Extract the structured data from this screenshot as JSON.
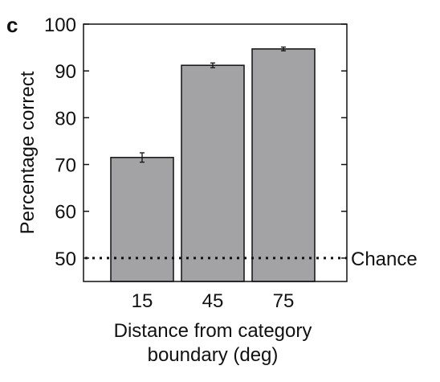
{
  "panel_label": "c",
  "chart_data": {
    "type": "bar",
    "categories": [
      "15",
      "45",
      "75"
    ],
    "values": [
      71.5,
      91.2,
      94.7
    ],
    "errors": [
      1.0,
      0.5,
      0.4
    ],
    "xlabel_lines": [
      "Distance from category",
      "boundary (deg)"
    ],
    "ylabel": "Percentage correct",
    "ylim": [
      45,
      100
    ],
    "yticks": [
      50,
      60,
      70,
      80,
      90,
      100
    ],
    "reference_line": {
      "value": 50,
      "label": "Chance",
      "style": "dotted"
    },
    "grid": false,
    "colors": {
      "bar_fill": "#a3a3a5",
      "bar_stroke": "#111111",
      "axis": "#111111",
      "reference_line": "#111111"
    }
  }
}
